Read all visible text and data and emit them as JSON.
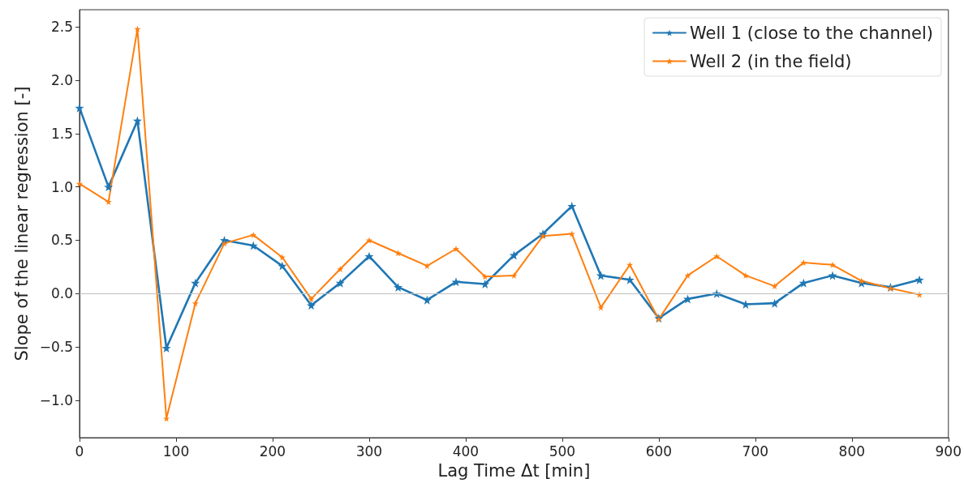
{
  "chart_data": {
    "type": "line",
    "xlabel": "Lag Time Δt [min]",
    "ylabel": "Slope of the linear regression [-]",
    "x": [
      0,
      30,
      60,
      90,
      120,
      150,
      180,
      210,
      240,
      270,
      300,
      330,
      360,
      390,
      420,
      450,
      480,
      510,
      540,
      570,
      600,
      630,
      660,
      690,
      720,
      750,
      780,
      810,
      840,
      870
    ],
    "series": [
      {
        "name": "Well 1 (close to the channel)",
        "color": "#1f77b4",
        "values": [
          1.74,
          1.0,
          1.62,
          -0.51,
          0.1,
          0.5,
          0.45,
          0.26,
          -0.11,
          0.1,
          0.35,
          0.06,
          -0.06,
          0.11,
          0.09,
          0.36,
          0.56,
          0.82,
          0.17,
          0.13,
          -0.23,
          -0.05,
          0.0,
          -0.1,
          -0.09,
          0.1,
          0.17,
          0.1,
          0.06,
          0.13
        ]
      },
      {
        "name": "Well 2 (in the field)",
        "color": "#ff7f0e",
        "values": [
          1.03,
          0.86,
          2.48,
          -1.17,
          -0.09,
          0.47,
          0.55,
          0.34,
          -0.05,
          0.23,
          0.5,
          0.38,
          0.26,
          0.42,
          0.16,
          0.17,
          0.54,
          0.56,
          -0.13,
          0.27,
          -0.24,
          0.17,
          0.35,
          0.17,
          0.07,
          0.29,
          0.27,
          0.12,
          0.05,
          -0.01
        ]
      }
    ],
    "xlim": [
      0,
      900
    ],
    "xticks": [
      0,
      100,
      200,
      300,
      400,
      500,
      600,
      700,
      800,
      900
    ],
    "ylim": [
      -1.35,
      2.66
    ],
    "yticks": [
      {
        "value": -1,
        "label": "−1.0"
      },
      {
        "value": -0.5,
        "label": "−0.5"
      },
      {
        "value": 0,
        "label": "0.0"
      },
      {
        "value": 0.5,
        "label": "0.5"
      },
      {
        "value": 1,
        "label": "1.0"
      },
      {
        "value": 1.5,
        "label": "1.5"
      },
      {
        "value": 2,
        "label": "2.0"
      },
      {
        "value": 2.5,
        "label": "2.5"
      }
    ],
    "ref_lines": [
      {
        "axis": "y",
        "value": 0,
        "color": "#bfbfbf"
      }
    ],
    "grid": false,
    "legend": "top right",
    "marker": "star",
    "line_style": "solid"
  }
}
